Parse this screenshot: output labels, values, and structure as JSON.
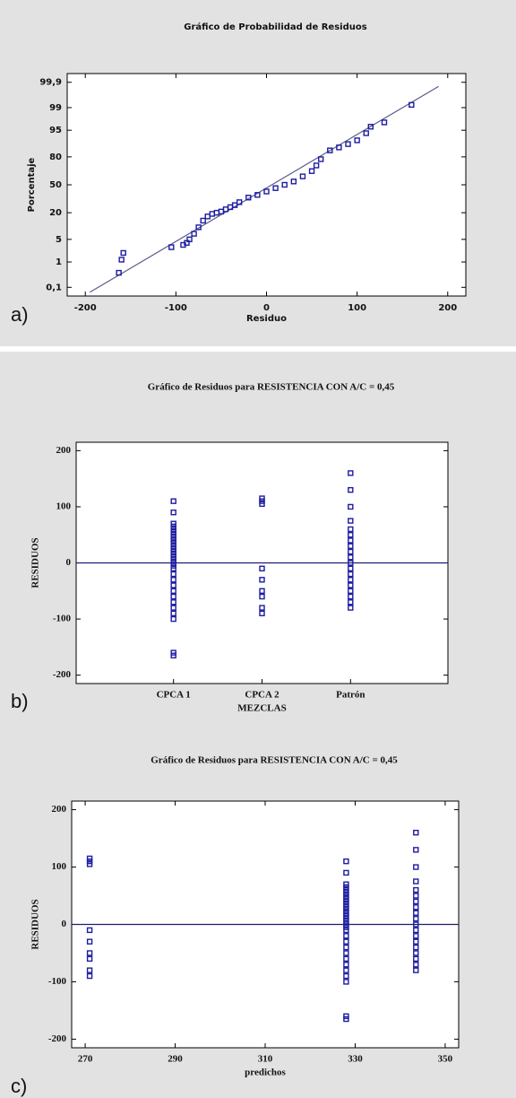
{
  "chart_data": [
    {
      "type": "probability",
      "panel": "a)",
      "title": "Gráfico de Probabilidad de Residuos",
      "xlabel": "Residuo",
      "ylabel": "Porcentaje",
      "xlim": [
        -220,
        220
      ],
      "xticks": [
        -200,
        -100,
        0,
        100,
        200
      ],
      "yscale": "probit",
      "ylim": [
        0.04,
        99.96
      ],
      "yticks": [
        {
          "value": 0.1,
          "label": "0,1"
        },
        1,
        5,
        20,
        50,
        80,
        95,
        99,
        {
          "value": 99.9,
          "label": "99,9"
        }
      ],
      "color": "#1c1ca0",
      "line_color": "#5a5a8a",
      "fit_line": {
        "x": [
          -195,
          190
        ],
        "y": [
          0.06,
          99.85
        ]
      },
      "x": [
        -163,
        -160,
        -158,
        -105,
        -92,
        -88,
        -85,
        -80,
        -75,
        -70,
        -65,
        -60,
        -55,
        -50,
        -45,
        -40,
        -35,
        -30,
        -20,
        -10,
        0,
        10,
        20,
        30,
        40,
        50,
        55,
        60,
        70,
        80,
        90,
        100,
        110,
        115,
        130,
        160
      ],
      "y": [
        0.4,
        1.2,
        2,
        3,
        3.5,
        4,
        5,
        7,
        10,
        14,
        17,
        19,
        20,
        21,
        23,
        25,
        27,
        30,
        35,
        38,
        42,
        46,
        50,
        54,
        60,
        66,
        72,
        78,
        85,
        87,
        89,
        91,
        94,
        96,
        97,
        99.2
      ]
    },
    {
      "type": "strip",
      "panel": "b)",
      "title": "Gráfico de Residuos para RESISTENCIA CON A/C = 0,45",
      "xlabel": "MEZCLAS",
      "ylabel": "RESIDUOS",
      "categories": [
        "CPCA 1",
        "CPCA 2",
        "Patrón"
      ],
      "ylim": [
        -215,
        215
      ],
      "yticks": [
        -200,
        -100,
        0,
        100,
        200
      ],
      "zero_line": true,
      "color": "#1c1ca0",
      "values": [
        [
          110,
          90,
          70,
          65,
          60,
          55,
          50,
          45,
          40,
          35,
          30,
          25,
          20,
          15,
          10,
          5,
          0,
          -5,
          -10,
          -20,
          -30,
          -40,
          -50,
          -60,
          -70,
          -80,
          -90,
          -100,
          -160,
          -165
        ],
        [
          115,
          110,
          105,
          -10,
          -30,
          -50,
          -60,
          -80,
          -90
        ],
        [
          160,
          130,
          100,
          75,
          60,
          50,
          40,
          30,
          20,
          10,
          0,
          -10,
          -20,
          -30,
          -40,
          -50,
          -60,
          -70,
          -80
        ]
      ]
    },
    {
      "type": "scatter",
      "panel": "c)",
      "title": "Gráfico de Residuos para RESISTENCIA CON A/C = 0,45",
      "xlabel": "predichos",
      "ylabel": "RESIDUOS",
      "xlim": [
        267,
        353
      ],
      "xticks": [
        270,
        290,
        310,
        330,
        350
      ],
      "ylim": [
        -215,
        215
      ],
      "yticks": [
        -200,
        -100,
        0,
        100,
        200
      ],
      "zero_line": true,
      "color": "#1c1ca0",
      "groups": [
        {
          "x": 271,
          "values": [
            115,
            110,
            105,
            -10,
            -30,
            -50,
            -60,
            -80,
            -90
          ]
        },
        {
          "x": 328,
          "values": [
            110,
            90,
            70,
            65,
            60,
            55,
            50,
            45,
            40,
            35,
            30,
            25,
            20,
            15,
            10,
            5,
            0,
            -5,
            -10,
            -20,
            -30,
            -40,
            -50,
            -60,
            -70,
            -80,
            -90,
            -100,
            -160,
            -165
          ]
        },
        {
          "x": 343.5,
          "values": [
            160,
            130,
            100,
            75,
            60,
            50,
            40,
            30,
            20,
            10,
            0,
            -10,
            -20,
            -30,
            -40,
            -50,
            -60,
            -70,
            -80
          ]
        }
      ]
    }
  ]
}
